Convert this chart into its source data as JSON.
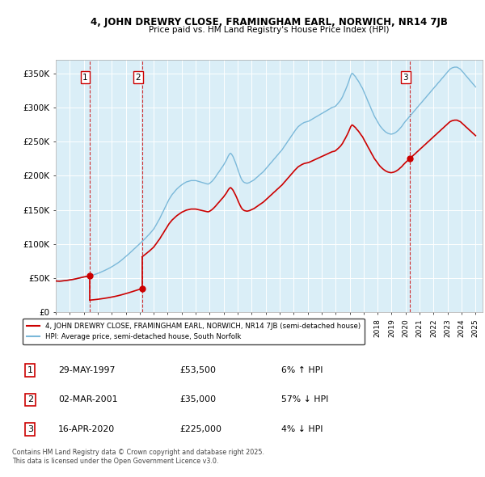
{
  "title_line1": "4, JOHN DREWRY CLOSE, FRAMINGHAM EARL, NORWICH, NR14 7JB",
  "title_line2": "Price paid vs. HM Land Registry's House Price Index (HPI)",
  "ylabel_ticks": [
    "£0",
    "£50K",
    "£100K",
    "£150K",
    "£200K",
    "£250K",
    "£300K",
    "£350K"
  ],
  "ytick_vals": [
    0,
    50000,
    100000,
    150000,
    200000,
    250000,
    300000,
    350000
  ],
  "ylim": [
    0,
    370000
  ],
  "xlim_start": 1995.0,
  "xlim_end": 2025.5,
  "hpi_color": "#7ab8d9",
  "price_color": "#cc0000",
  "background_color": "#daeef7",
  "highlight_color": "#c5e3f0",
  "grid_color": "#ffffff",
  "transactions": [
    {
      "date_dec": 1997.41,
      "price": 53500,
      "label": "1"
    },
    {
      "date_dec": 2001.17,
      "price": 35000,
      "label": "2"
    },
    {
      "date_dec": 2020.29,
      "price": 225000,
      "label": "3"
    }
  ],
  "legend_line1": "4, JOHN DREWRY CLOSE, FRAMINGHAM EARL, NORWICH, NR14 7JB (semi-detached house)",
  "legend_line2": "HPI: Average price, semi-detached house, South Norfolk",
  "table_data": [
    {
      "num": "1",
      "date": "29-MAY-1997",
      "price": "£53,500",
      "hpi": "6% ↑ HPI"
    },
    {
      "num": "2",
      "date": "02-MAR-2001",
      "price": "£35,000",
      "hpi": "57% ↓ HPI"
    },
    {
      "num": "3",
      "date": "16-APR-2020",
      "price": "£225,000",
      "hpi": "4% ↓ HPI"
    }
  ],
  "footnote": "Contains HM Land Registry data © Crown copyright and database right 2025.\nThis data is licensed under the Open Government Licence v3.0.",
  "hpi_data_x": [
    1995.0,
    1995.08,
    1995.17,
    1995.25,
    1995.33,
    1995.42,
    1995.5,
    1995.58,
    1995.67,
    1995.75,
    1995.83,
    1995.92,
    1996.0,
    1996.08,
    1996.17,
    1996.25,
    1996.33,
    1996.42,
    1996.5,
    1996.58,
    1996.67,
    1996.75,
    1996.83,
    1996.92,
    1997.0,
    1997.08,
    1997.17,
    1997.25,
    1997.33,
    1997.42,
    1997.5,
    1997.58,
    1997.67,
    1997.75,
    1997.83,
    1997.92,
    1998.0,
    1998.08,
    1998.17,
    1998.25,
    1998.33,
    1998.42,
    1998.5,
    1998.58,
    1998.67,
    1998.75,
    1998.83,
    1998.92,
    1999.0,
    1999.08,
    1999.17,
    1999.25,
    1999.33,
    1999.42,
    1999.5,
    1999.58,
    1999.67,
    1999.75,
    1999.83,
    1999.92,
    2000.0,
    2000.08,
    2000.17,
    2000.25,
    2000.33,
    2000.42,
    2000.5,
    2000.58,
    2000.67,
    2000.75,
    2000.83,
    2000.92,
    2001.0,
    2001.08,
    2001.17,
    2001.25,
    2001.33,
    2001.42,
    2001.5,
    2001.58,
    2001.67,
    2001.75,
    2001.83,
    2001.92,
    2002.0,
    2002.08,
    2002.17,
    2002.25,
    2002.33,
    2002.42,
    2002.5,
    2002.58,
    2002.67,
    2002.75,
    2002.83,
    2002.92,
    2003.0,
    2003.08,
    2003.17,
    2003.25,
    2003.33,
    2003.42,
    2003.5,
    2003.58,
    2003.67,
    2003.75,
    2003.83,
    2003.92,
    2004.0,
    2004.08,
    2004.17,
    2004.25,
    2004.33,
    2004.42,
    2004.5,
    2004.58,
    2004.67,
    2004.75,
    2004.83,
    2004.92,
    2005.0,
    2005.08,
    2005.17,
    2005.25,
    2005.33,
    2005.42,
    2005.5,
    2005.58,
    2005.67,
    2005.75,
    2005.83,
    2005.92,
    2006.0,
    2006.08,
    2006.17,
    2006.25,
    2006.33,
    2006.42,
    2006.5,
    2006.58,
    2006.67,
    2006.75,
    2006.83,
    2006.92,
    2007.0,
    2007.08,
    2007.17,
    2007.25,
    2007.33,
    2007.42,
    2007.5,
    2007.58,
    2007.67,
    2007.75,
    2007.83,
    2007.92,
    2008.0,
    2008.08,
    2008.17,
    2008.25,
    2008.33,
    2008.42,
    2008.5,
    2008.58,
    2008.67,
    2008.75,
    2008.83,
    2008.92,
    2009.0,
    2009.08,
    2009.17,
    2009.25,
    2009.33,
    2009.42,
    2009.5,
    2009.58,
    2009.67,
    2009.75,
    2009.83,
    2009.92,
    2010.0,
    2010.08,
    2010.17,
    2010.25,
    2010.33,
    2010.42,
    2010.5,
    2010.58,
    2010.67,
    2010.75,
    2010.83,
    2010.92,
    2011.0,
    2011.08,
    2011.17,
    2011.25,
    2011.33,
    2011.42,
    2011.5,
    2011.58,
    2011.67,
    2011.75,
    2011.83,
    2011.92,
    2012.0,
    2012.08,
    2012.17,
    2012.25,
    2012.33,
    2012.42,
    2012.5,
    2012.58,
    2012.67,
    2012.75,
    2012.83,
    2012.92,
    2013.0,
    2013.08,
    2013.17,
    2013.25,
    2013.33,
    2013.42,
    2013.5,
    2013.58,
    2013.67,
    2013.75,
    2013.83,
    2013.92,
    2014.0,
    2014.08,
    2014.17,
    2014.25,
    2014.33,
    2014.42,
    2014.5,
    2014.58,
    2014.67,
    2014.75,
    2014.83,
    2014.92,
    2015.0,
    2015.08,
    2015.17,
    2015.25,
    2015.33,
    2015.42,
    2015.5,
    2015.58,
    2015.67,
    2015.75,
    2015.83,
    2015.92,
    2016.0,
    2016.08,
    2016.17,
    2016.25,
    2016.33,
    2016.42,
    2016.5,
    2016.58,
    2016.67,
    2016.75,
    2016.83,
    2016.92,
    2017.0,
    2017.08,
    2017.17,
    2017.25,
    2017.33,
    2017.42,
    2017.5,
    2017.58,
    2017.67,
    2017.75,
    2017.83,
    2017.92,
    2018.0,
    2018.08,
    2018.17,
    2018.25,
    2018.33,
    2018.42,
    2018.5,
    2018.58,
    2018.67,
    2018.75,
    2018.83,
    2018.92,
    2019.0,
    2019.08,
    2019.17,
    2019.25,
    2019.33,
    2019.42,
    2019.5,
    2019.58,
    2019.67,
    2019.75,
    2019.83,
    2019.92,
    2020.0,
    2020.08,
    2020.17,
    2020.25,
    2020.33,
    2020.42,
    2020.5,
    2020.58,
    2020.67,
    2020.75,
    2020.83,
    2020.92,
    2021.0,
    2021.08,
    2021.17,
    2021.25,
    2021.33,
    2021.42,
    2021.5,
    2021.58,
    2021.67,
    2021.75,
    2021.83,
    2021.92,
    2022.0,
    2022.08,
    2022.17,
    2022.25,
    2022.33,
    2022.42,
    2022.5,
    2022.58,
    2022.67,
    2022.75,
    2022.83,
    2022.92,
    2023.0,
    2023.08,
    2023.17,
    2023.25,
    2023.33,
    2023.42,
    2023.5,
    2023.58,
    2023.67,
    2023.75,
    2023.83,
    2023.92,
    2024.0,
    2024.08,
    2024.17,
    2024.25,
    2024.33,
    2024.42,
    2024.5,
    2024.58,
    2024.67,
    2024.75,
    2024.83,
    2024.92,
    2025.0
  ],
  "hpi_data_y": [
    46000,
    45800,
    45700,
    45600,
    45700,
    45900,
    46100,
    46300,
    46500,
    46700,
    46900,
    47200,
    47500,
    47700,
    48000,
    48300,
    48600,
    49000,
    49400,
    49800,
    50200,
    50600,
    51000,
    51400,
    51800,
    52100,
    52400,
    52700,
    53000,
    53400,
    53800,
    54300,
    54800,
    55300,
    55900,
    56500,
    57100,
    57800,
    58500,
    59200,
    59900,
    60700,
    61500,
    62300,
    63100,
    64000,
    64900,
    65800,
    66800,
    67800,
    68800,
    69900,
    71000,
    72200,
    73400,
    74700,
    76000,
    77400,
    78800,
    80300,
    81800,
    83200,
    84700,
    86200,
    87800,
    89400,
    91000,
    92600,
    94200,
    95800,
    97400,
    99000,
    100600,
    102200,
    103800,
    105400,
    107000,
    108800,
    110600,
    112400,
    114200,
    116100,
    118000,
    120000,
    122000,
    125000,
    128000,
    131000,
    134000,
    137000,
    140500,
    144000,
    147500,
    151000,
    154500,
    158000,
    161500,
    165000,
    168000,
    170500,
    173000,
    175000,
    177000,
    179000,
    181000,
    182500,
    184000,
    185500,
    187000,
    188000,
    189000,
    190000,
    191000,
    191500,
    192000,
    192500,
    193000,
    193000,
    193000,
    193000,
    193000,
    192500,
    192000,
    191500,
    191000,
    190500,
    190000,
    189500,
    189000,
    188500,
    188000,
    188000,
    189000,
    190500,
    192000,
    194000,
    196000,
    198500,
    201000,
    203500,
    206000,
    208500,
    211000,
    213500,
    216000,
    219000,
    222000,
    225500,
    229000,
    232000,
    233000,
    231000,
    228000,
    224000,
    220000,
    215000,
    210000,
    205000,
    200000,
    196000,
    193000,
    191000,
    190000,
    189500,
    189000,
    189500,
    190000,
    191000,
    192000,
    193000,
    194000,
    195500,
    197000,
    198500,
    200000,
    201500,
    203000,
    204500,
    206000,
    208000,
    210000,
    212000,
    214000,
    216000,
    218000,
    220000,
    222000,
    224000,
    226000,
    228000,
    230000,
    232000,
    234000,
    236000,
    238000,
    240500,
    243000,
    245500,
    248000,
    250500,
    253000,
    255500,
    258000,
    260500,
    263000,
    265500,
    268000,
    270000,
    272000,
    273500,
    275000,
    276000,
    277000,
    278000,
    278500,
    279000,
    279500,
    280000,
    281000,
    282000,
    283000,
    284000,
    285000,
    286000,
    287000,
    288000,
    289000,
    290000,
    291000,
    292000,
    293000,
    294000,
    295000,
    296000,
    297000,
    298000,
    299000,
    300000,
    300500,
    301000,
    302000,
    304000,
    306000,
    308000,
    310000,
    313000,
    316000,
    320000,
    324000,
    328000,
    332000,
    337000,
    342000,
    347000,
    350000,
    349000,
    347000,
    345000,
    342000,
    340000,
    337000,
    334000,
    331000,
    328000,
    324000,
    320000,
    316000,
    312000,
    308000,
    304000,
    300000,
    296000,
    292000,
    288000,
    285000,
    282000,
    279000,
    276000,
    273000,
    271000,
    269000,
    267000,
    265500,
    264000,
    263000,
    262000,
    261500,
    261000,
    261000,
    261500,
    262000,
    263000,
    264000,
    265500,
    267000,
    269000,
    271000,
    273000,
    275500,
    278000,
    280000,
    282000,
    284000,
    286000,
    288000,
    290000,
    292000,
    294000,
    296000,
    298000,
    300000,
    302000,
    304000,
    306000,
    308000,
    310000,
    312000,
    314000,
    316000,
    318000,
    320000,
    322000,
    324000,
    326000,
    328000,
    330000,
    332000,
    334000,
    336000,
    338000,
    340000,
    342000,
    344000,
    346000,
    348000,
    350000,
    352000,
    354000,
    356000,
    357000,
    358000,
    358500,
    359000,
    359000,
    359000,
    358000,
    357000,
    356000,
    354000,
    352000,
    350000,
    348000,
    346000,
    344000,
    342000,
    340000,
    338000,
    336000,
    334000,
    332000,
    330000
  ]
}
